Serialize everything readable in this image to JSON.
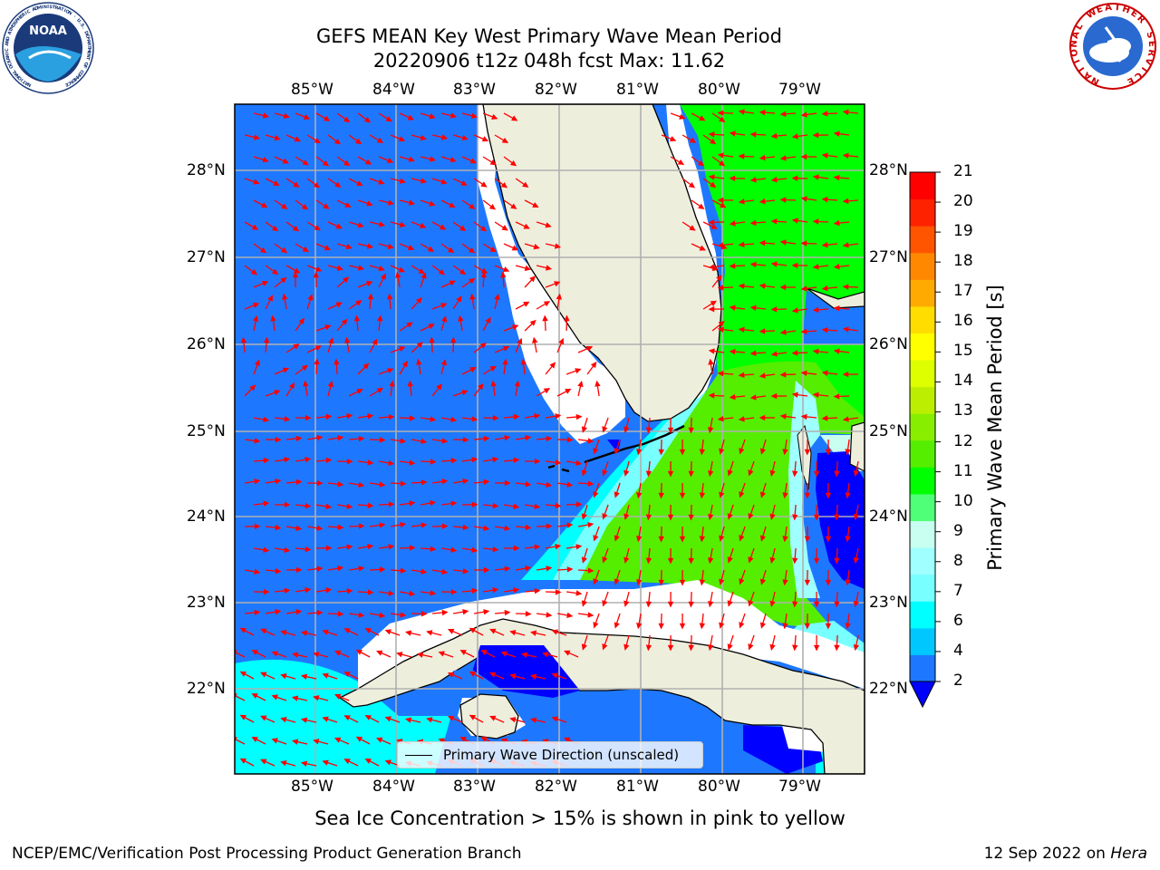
{
  "header": {
    "title_line1": "GEFS MEAN Key West Primary Wave Mean Period",
    "title_line2": "20220906 t12z 048h fcst   Max: 11.62"
  },
  "logos": {
    "left": {
      "text": "NOAA",
      "ring_text": "NATIONAL OCEANIC AND ATMOSPHERIC ADMINISTRATION · U.S. DEPARTMENT OF COMMERCE"
    },
    "right": {
      "ring_text": "NATIONAL WEATHER SERVICE"
    }
  },
  "map": {
    "lon_labels": [
      "85°W",
      "84°W",
      "83°W",
      "82°W",
      "81°W",
      "80°W",
      "79°W"
    ],
    "lat_labels": [
      "28°N",
      "27°N",
      "26°N",
      "25°N",
      "24°N",
      "23°N",
      "22°N"
    ],
    "legend": {
      "label": "Primary Wave Direction (unscaled)"
    },
    "colors": {
      "land": "#eeeedd",
      "gridline": "#b0b0b0",
      "arrow": "#ff0000",
      "coast": "#000000"
    }
  },
  "colorbar": {
    "label": "Primary Wave Mean Period [s]",
    "ticks": [
      "2",
      "4",
      "6",
      "7",
      "8",
      "9",
      "10",
      "11",
      "12",
      "13",
      "14",
      "15",
      "16",
      "17",
      "18",
      "19",
      "20",
      "21"
    ],
    "colors": [
      "#1e78ff",
      "#00c8ff",
      "#00ffff",
      "#78ffff",
      "#a0ffff",
      "#c8fff0",
      "#50ff78",
      "#00ff00",
      "#55ee00",
      "#88ee00",
      "#bbee00",
      "#ddff00",
      "#ffff00",
      "#ffdd00",
      "#ffaa00",
      "#ff8800",
      "#ff5500",
      "#ff2200",
      "#ff0000"
    ],
    "under_color": "#0000ff"
  },
  "footer": {
    "sea_ice_note": "Sea Ice Concentration > 15% is shown in pink to yellow",
    "branch": "NCEP/EMC/Verification Post Processing Product Generation Branch",
    "date": "12 Sep 2022 on ",
    "host": "Hera"
  }
}
